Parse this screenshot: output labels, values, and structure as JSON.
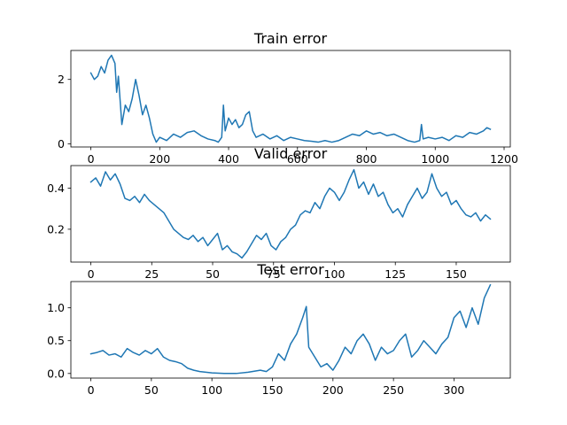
{
  "chart_data": [
    {
      "type": "line",
      "title": "Train error",
      "xlim": [
        -58,
        1218
      ],
      "ylim": [
        -0.1,
        2.9
      ],
      "x_ticks": [
        0,
        200,
        400,
        600,
        800,
        1000,
        1200
      ],
      "y_ticks": [
        0,
        2
      ],
      "color": "#1f77b4",
      "series": [
        {
          "x": [
            0,
            10,
            20,
            30,
            40,
            50,
            60,
            70,
            75,
            80,
            90,
            100,
            110,
            120,
            130,
            140,
            150,
            160,
            170,
            180,
            190,
            200,
            220,
            240,
            260,
            280,
            300,
            320,
            340,
            360,
            370,
            380,
            385,
            390,
            400,
            410,
            420,
            430,
            440,
            450,
            460,
            470,
            480,
            500,
            520,
            540,
            560,
            580,
            600,
            620,
            640,
            660,
            680,
            700,
            720,
            740,
            760,
            780,
            800,
            820,
            840,
            860,
            880,
            900,
            920,
            940,
            955,
            960,
            965,
            980,
            1000,
            1020,
            1040,
            1060,
            1080,
            1100,
            1120,
            1140,
            1150,
            1160
          ],
          "y": [
            2.2,
            2.0,
            2.1,
            2.4,
            2.2,
            2.6,
            2.75,
            2.5,
            1.6,
            2.1,
            0.6,
            1.2,
            1.0,
            1.4,
            2.0,
            1.5,
            0.9,
            1.2,
            0.8,
            0.3,
            0.05,
            0.2,
            0.1,
            0.3,
            0.2,
            0.35,
            0.4,
            0.25,
            0.15,
            0.1,
            0.05,
            0.2,
            1.2,
            0.4,
            0.8,
            0.6,
            0.75,
            0.5,
            0.6,
            0.9,
            1.0,
            0.4,
            0.2,
            0.3,
            0.15,
            0.25,
            0.1,
            0.2,
            0.15,
            0.1,
            0.08,
            0.05,
            0.1,
            0.05,
            0.1,
            0.2,
            0.3,
            0.25,
            0.4,
            0.3,
            0.35,
            0.25,
            0.3,
            0.2,
            0.1,
            0.05,
            0.1,
            0.6,
            0.15,
            0.2,
            0.15,
            0.2,
            0.1,
            0.25,
            0.2,
            0.35,
            0.3,
            0.4,
            0.5,
            0.45
          ]
        }
      ]
    },
    {
      "type": "line",
      "title": "Valid error",
      "xlim": [
        -8.2,
        172.2
      ],
      "ylim": [
        0.04,
        0.51
      ],
      "x_ticks": [
        0,
        25,
        50,
        75,
        100,
        125,
        150
      ],
      "y_ticks": [
        0.2,
        0.4
      ],
      "color": "#1f77b4",
      "series": [
        {
          "x": [
            0,
            2,
            4,
            6,
            8,
            10,
            12,
            14,
            16,
            18,
            20,
            22,
            24,
            26,
            28,
            30,
            32,
            34,
            36,
            38,
            40,
            42,
            44,
            46,
            48,
            50,
            52,
            54,
            56,
            58,
            60,
            62,
            64,
            66,
            68,
            70,
            72,
            74,
            76,
            78,
            80,
            82,
            84,
            86,
            88,
            90,
            92,
            94,
            96,
            98,
            100,
            102,
            104,
            106,
            108,
            110,
            112,
            114,
            116,
            118,
            120,
            122,
            124,
            126,
            128,
            130,
            132,
            134,
            136,
            138,
            140,
            142,
            144,
            146,
            148,
            150,
            152,
            154,
            156,
            158,
            160,
            162,
            164
          ],
          "y": [
            0.43,
            0.45,
            0.41,
            0.48,
            0.44,
            0.47,
            0.42,
            0.35,
            0.34,
            0.36,
            0.33,
            0.37,
            0.34,
            0.32,
            0.3,
            0.28,
            0.24,
            0.2,
            0.18,
            0.16,
            0.15,
            0.17,
            0.14,
            0.16,
            0.12,
            0.15,
            0.18,
            0.1,
            0.12,
            0.09,
            0.08,
            0.06,
            0.09,
            0.13,
            0.17,
            0.15,
            0.18,
            0.12,
            0.1,
            0.14,
            0.16,
            0.2,
            0.22,
            0.27,
            0.29,
            0.28,
            0.33,
            0.3,
            0.36,
            0.4,
            0.38,
            0.34,
            0.38,
            0.44,
            0.49,
            0.4,
            0.43,
            0.37,
            0.42,
            0.36,
            0.38,
            0.32,
            0.28,
            0.3,
            0.26,
            0.32,
            0.36,
            0.4,
            0.35,
            0.38,
            0.47,
            0.4,
            0.36,
            0.38,
            0.32,
            0.34,
            0.3,
            0.27,
            0.26,
            0.28,
            0.24,
            0.27,
            0.25
          ]
        }
      ]
    },
    {
      "type": "line",
      "title": "Test error",
      "xlim": [
        -16.5,
        346.5
      ],
      "ylim": [
        -0.07,
        1.4
      ],
      "x_ticks": [
        0,
        50,
        100,
        150,
        200,
        250,
        300
      ],
      "y_ticks": [
        0.0,
        0.5,
        1.0
      ],
      "color": "#1f77b4",
      "series": [
        {
          "x": [
            0,
            5,
            10,
            15,
            20,
            25,
            30,
            35,
            40,
            45,
            50,
            55,
            60,
            65,
            70,
            75,
            80,
            85,
            90,
            95,
            100,
            110,
            120,
            130,
            140,
            145,
            150,
            155,
            160,
            165,
            170,
            175,
            178,
            180,
            185,
            190,
            195,
            200,
            205,
            210,
            215,
            220,
            225,
            230,
            235,
            240,
            245,
            250,
            255,
            260,
            265,
            270,
            275,
            280,
            285,
            290,
            295,
            300,
            305,
            310,
            315,
            320,
            325,
            330
          ],
          "y": [
            0.3,
            0.32,
            0.35,
            0.28,
            0.3,
            0.25,
            0.38,
            0.32,
            0.28,
            0.35,
            0.3,
            0.38,
            0.25,
            0.2,
            0.18,
            0.15,
            0.08,
            0.05,
            0.03,
            0.02,
            0.01,
            0.0,
            0.0,
            0.02,
            0.05,
            0.03,
            0.1,
            0.3,
            0.2,
            0.45,
            0.6,
            0.85,
            1.02,
            0.4,
            0.25,
            0.1,
            0.15,
            0.05,
            0.2,
            0.4,
            0.3,
            0.5,
            0.6,
            0.45,
            0.2,
            0.4,
            0.3,
            0.35,
            0.5,
            0.6,
            0.25,
            0.35,
            0.5,
            0.4,
            0.3,
            0.45,
            0.55,
            0.85,
            0.95,
            0.7,
            1.0,
            0.75,
            1.15,
            1.35
          ]
        }
      ]
    }
  ]
}
